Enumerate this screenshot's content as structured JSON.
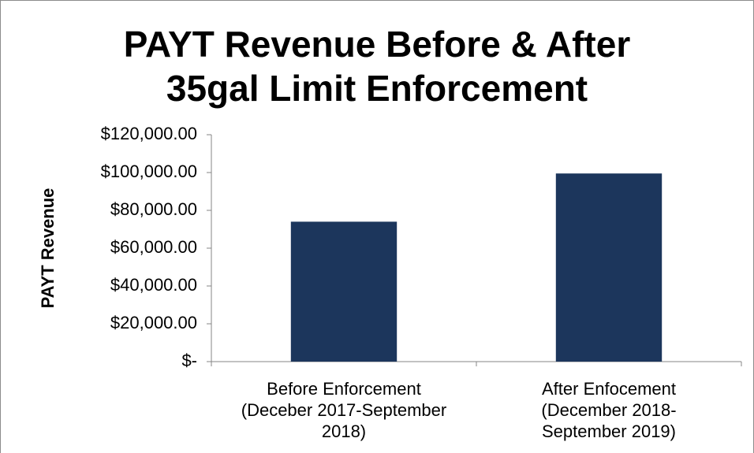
{
  "chart_data": {
    "type": "bar",
    "title": "PAYT Revenue Before & After\n35gal Limit Enforcement",
    "y_label": "PAYT Revenue",
    "categories": [
      "Before Enforcement\n(Deceber 2017-September\n2018)",
      "After Enfocement\n(December 2018-\nSeptember 2019)"
    ],
    "values": [
      74000,
      99500
    ],
    "color": "#1c365c",
    "ylim": [
      0,
      120000
    ],
    "yticks": [
      {
        "value": 0,
        "label": "$-"
      },
      {
        "value": 20000,
        "label": "$20,000.00"
      },
      {
        "value": 40000,
        "label": "$40,000.00"
      },
      {
        "value": 60000,
        "label": "$60,000.00"
      },
      {
        "value": 80000,
        "label": "$80,000.00"
      },
      {
        "value": 100000,
        "label": "$100,000.00"
      },
      {
        "value": 120000,
        "label": "$120,000.00"
      }
    ],
    "grid": false
  }
}
